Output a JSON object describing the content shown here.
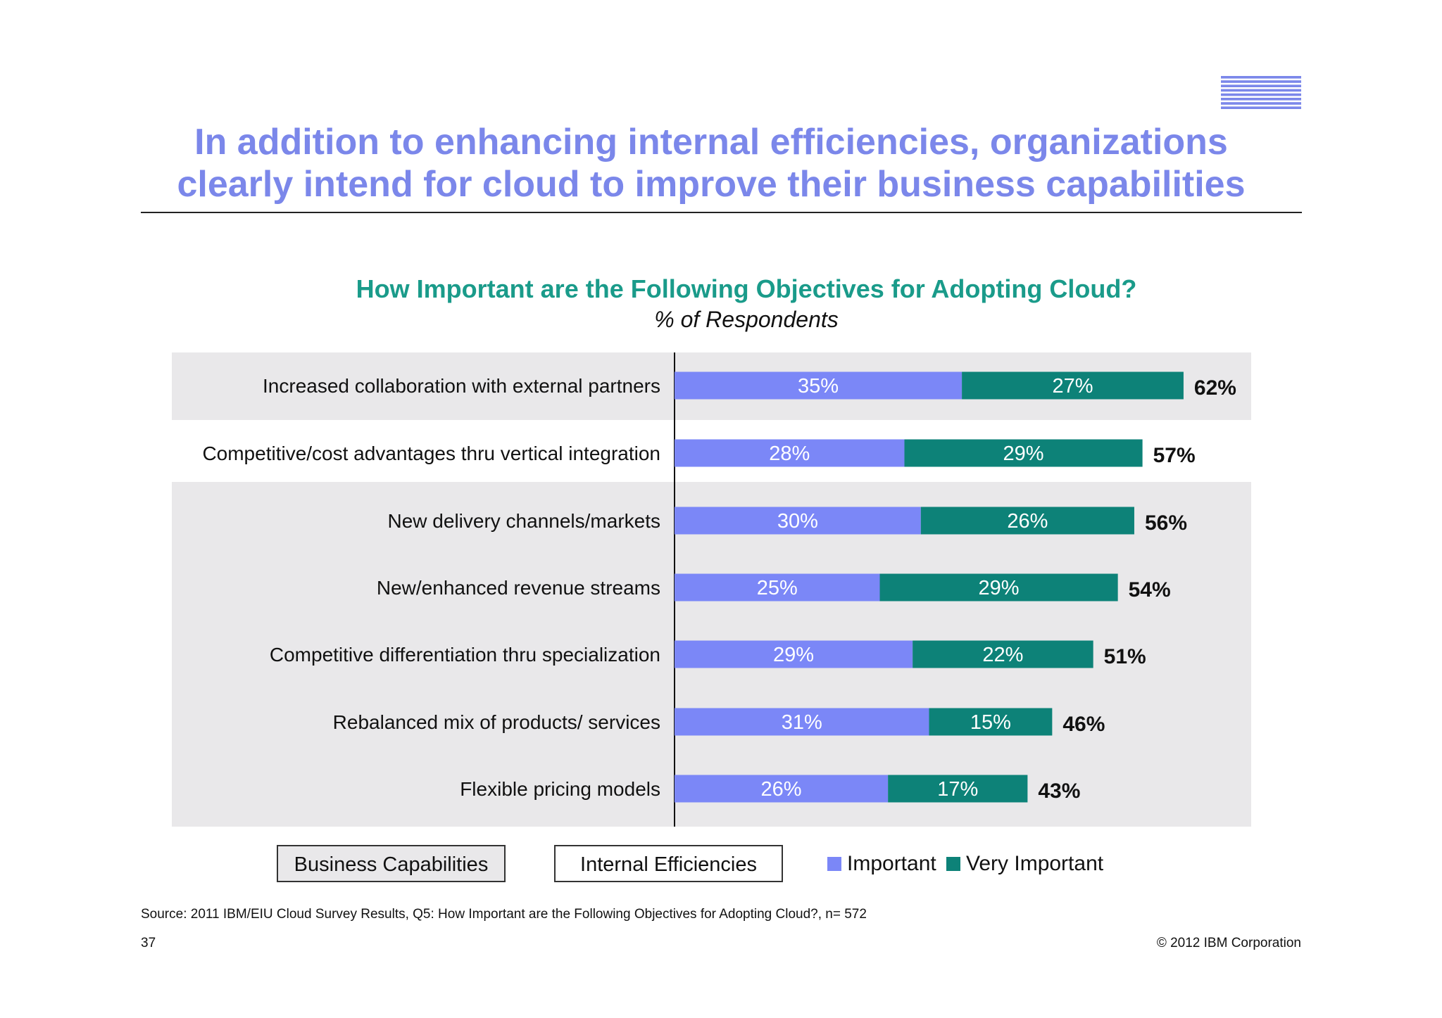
{
  "slide": {
    "title_line1": "In addition to enhancing internal efficiencies, organizations",
    "title_line2": "clearly intend for cloud to improve their business capabilities",
    "logo_text": "IBM",
    "source": "Source:  2011 IBM/EIU Cloud Survey Results, Q5: How Important are the Following Objectives for Adopting Cloud?, n= 572",
    "page_number": "37",
    "copyright": "© 2012 IBM Corporation"
  },
  "colors": {
    "title": "#7b87ea",
    "chart_title": "#1a9b8a",
    "important": "#7b87f7",
    "very_important": "#0d8278",
    "band": "#e9e8ea"
  },
  "chart_data": {
    "type": "bar",
    "orientation": "horizontal",
    "stacked": true,
    "title": "How Important are the Following Objectives for Adopting Cloud?",
    "subtitle": "% of Respondents",
    "categories": [
      "Increased collaboration with external partners",
      "Competitive/cost advantages thru vertical integration",
      "New delivery channels/markets",
      "New/enhanced revenue streams",
      "Competitive differentiation thru specialization",
      "Rebalanced mix of products/ services",
      "Flexible pricing models"
    ],
    "series": [
      {
        "name": "Important",
        "values": [
          35,
          28,
          30,
          25,
          29,
          31,
          26
        ]
      },
      {
        "name": "Very Important",
        "values": [
          27,
          29,
          26,
          29,
          22,
          15,
          17
        ]
      }
    ],
    "totals": [
      62,
      57,
      56,
      54,
      51,
      46,
      43
    ],
    "value_suffix": "%",
    "groups": [
      {
        "label": "Business Capabilities",
        "rows": [
          0,
          2,
          3,
          4,
          5,
          6
        ]
      },
      {
        "label": "Internal Efficiencies",
        "rows": [
          1
        ]
      }
    ],
    "legend": [
      "Important",
      "Very Important"
    ]
  }
}
